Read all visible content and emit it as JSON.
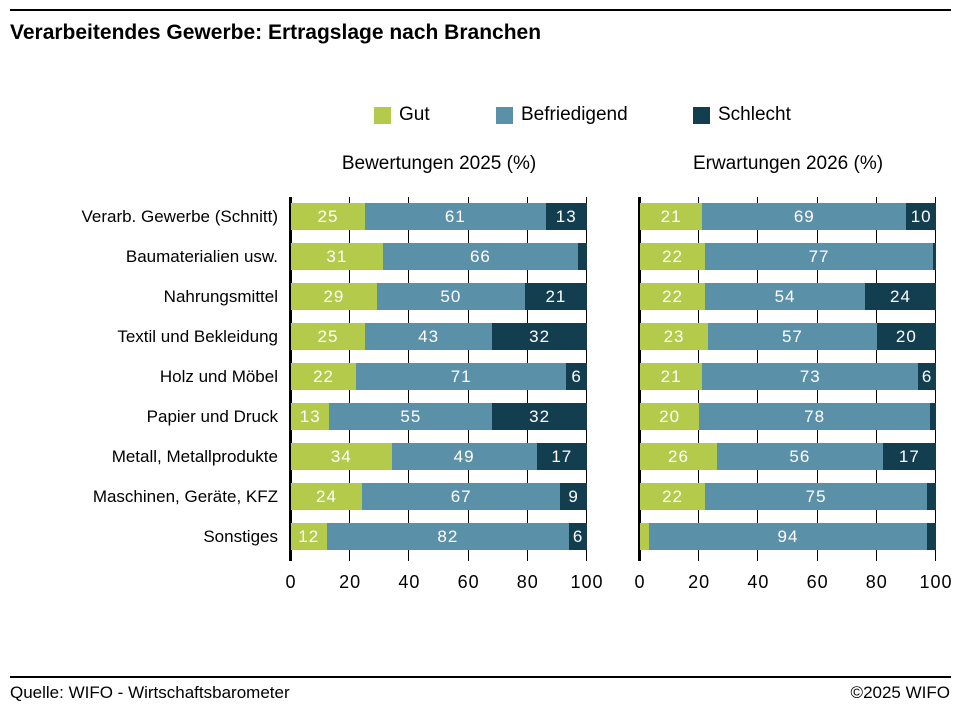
{
  "title": "Verarbeitendes Gewerbe: Ertragslage nach Branchen",
  "footer": {
    "source": "Quelle: WIFO - Wirtschaftsbarometer",
    "copyright": "©2025 WIFO"
  },
  "legend": {
    "items": [
      {
        "label": "Gut",
        "color": "#b4ca4a"
      },
      {
        "label": "Befriedigend",
        "color": "#5b90a9"
      },
      {
        "label": "Schlecht",
        "color": "#123e50"
      }
    ]
  },
  "chart_data": {
    "type": "bar",
    "orientation": "horizontal-stacked",
    "title": "Verarbeitendes Gewerbe: Ertragslage nach Branchen",
    "categories": [
      "Verarb. Gewerbe (Schnitt)",
      "Baumaterialien usw.",
      "Nahrungsmittel",
      "Textil und Bekleidung",
      "Holz und Möbel",
      "Papier und Druck",
      "Metall, Metallprodukte",
      "Maschinen, Geräte, KFZ",
      "Sonstiges"
    ],
    "x_axis": {
      "min": 0,
      "max": 100,
      "ticks": [
        0,
        20,
        40,
        60,
        80,
        100
      ],
      "unit": "%"
    },
    "legend_position": "top",
    "grid": "vertical-lines-visible-in-gaps",
    "label_rule": "segment value labels shown only when value >= 6",
    "colors": {
      "Gut": "#b4ca4a",
      "Befriedigend": "#5b90a9",
      "Schlecht": "#123e50"
    },
    "panels": [
      {
        "subtitle": "Bewertungen 2025 (%)",
        "series": [
          {
            "name": "Gut",
            "values": [
              25,
              31,
              29,
              25,
              22,
              13,
              34,
              24,
              12
            ]
          },
          {
            "name": "Befriedigend",
            "values": [
              61,
              66,
              50,
              43,
              71,
              55,
              49,
              67,
              82
            ]
          },
          {
            "name": "Schlecht",
            "values": [
              13,
              3,
              21,
              32,
              6,
              32,
              17,
              9,
              6
            ]
          }
        ]
      },
      {
        "subtitle": "Erwartungen 2026 (%)",
        "series": [
          {
            "name": "Gut",
            "values": [
              21,
              22,
              22,
              23,
              21,
              20,
              26,
              22,
              3
            ]
          },
          {
            "name": "Befriedigend",
            "values": [
              69,
              77,
              54,
              57,
              73,
              78,
              56,
              75,
              94
            ]
          },
          {
            "name": "Schlecht",
            "values": [
              10,
              1,
              24,
              20,
              6,
              2,
              17,
              3,
              3
            ]
          }
        ]
      }
    ]
  }
}
